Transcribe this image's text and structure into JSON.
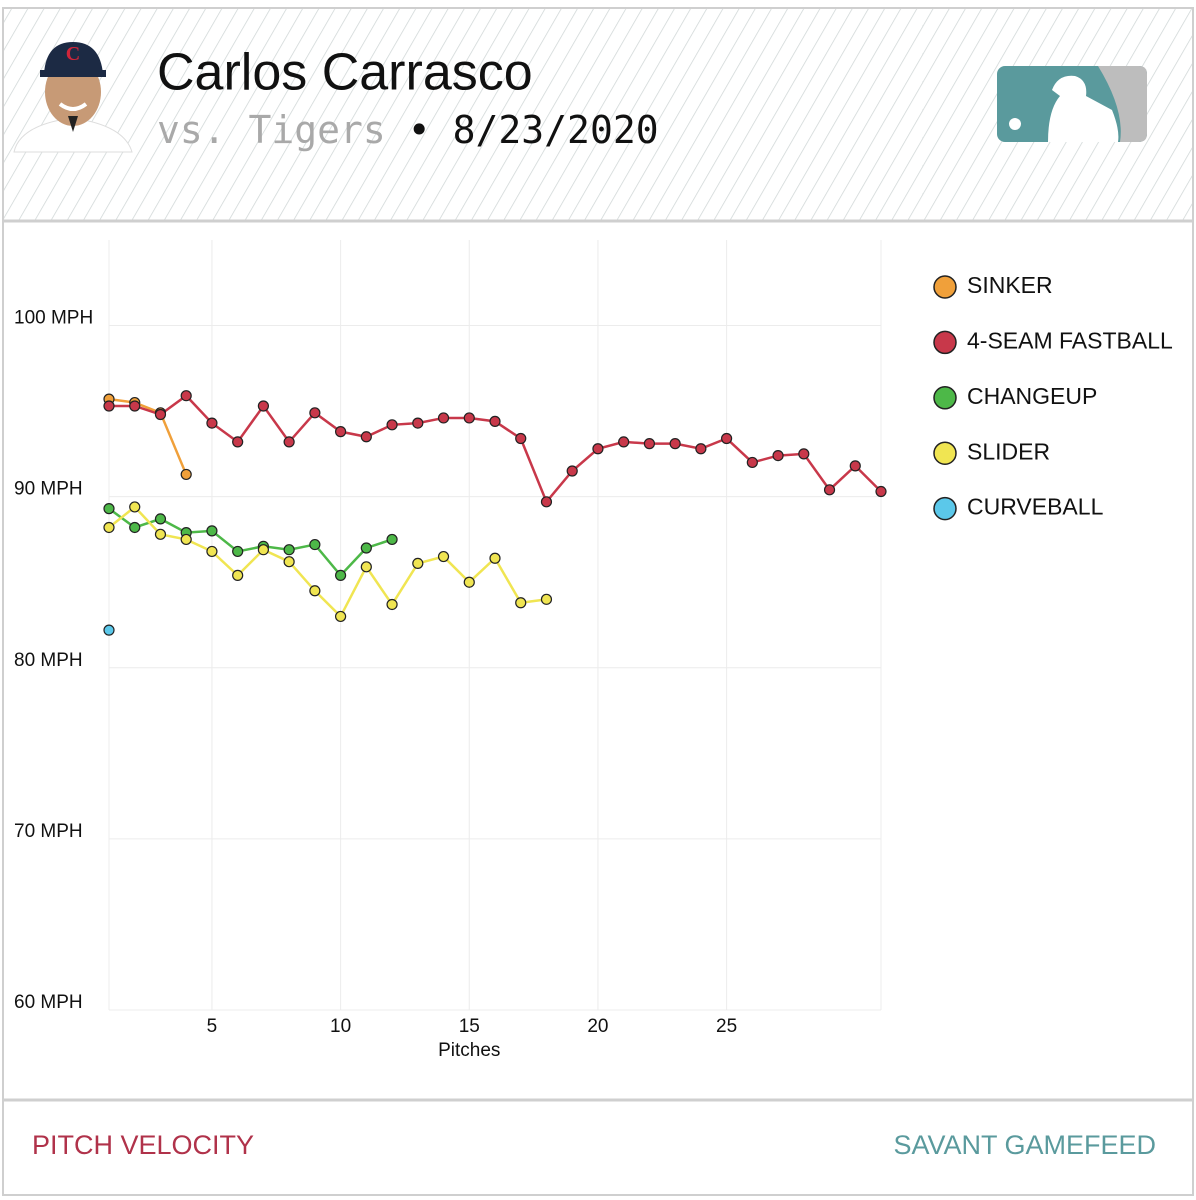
{
  "header": {
    "title": "Carlos Carrasco",
    "opponent": "vs. Tigers",
    "separator": "•",
    "date": "8/23/2020"
  },
  "footer": {
    "left": "PITCH VELOCITY",
    "right": "SAVANT GAMEFEED"
  },
  "chart_data": {
    "type": "line",
    "x_label": "Pitches",
    "x": [
      1,
      2,
      3,
      4,
      5,
      6,
      7,
      8,
      9,
      10,
      11,
      12,
      13,
      14,
      15,
      16,
      17,
      18,
      19,
      20,
      21,
      22,
      23,
      24,
      25,
      26,
      27,
      28,
      29,
      30,
      31
    ],
    "xlim": [
      1,
      31
    ],
    "xticks": [
      5,
      10,
      15,
      20,
      25
    ],
    "ylim": [
      60,
      105
    ],
    "yticks": [
      {
        "value": 60,
        "label": "60 MPH"
      },
      {
        "value": 70,
        "label": "70 MPH"
      },
      {
        "value": 80,
        "label": "80 MPH"
      },
      {
        "value": 90,
        "label": "90 MPH"
      },
      {
        "value": 100,
        "label": "100 MPH"
      }
    ],
    "grid": true,
    "legend": "right",
    "series": [
      {
        "name": "SINKER",
        "color": "#f0a03a",
        "values": [
          95.7,
          95.5,
          94.9,
          91.3,
          null,
          null,
          null,
          null,
          null,
          null,
          null,
          null,
          null,
          null,
          null,
          null,
          null,
          null,
          null,
          null,
          null,
          null,
          null,
          null,
          null,
          null,
          null,
          null,
          null,
          null,
          null
        ]
      },
      {
        "name": "4-SEAM FASTBALL",
        "color": "#c8384a",
        "values": [
          95.3,
          95.3,
          94.8,
          95.9,
          94.3,
          93.2,
          95.3,
          93.2,
          94.9,
          93.8,
          93.5,
          94.2,
          94.3,
          94.6,
          94.6,
          94.4,
          93.4,
          89.7,
          91.5,
          92.8,
          93.2,
          93.1,
          93.1,
          92.8,
          93.4,
          92.0,
          92.4,
          92.5,
          90.4,
          91.8,
          90.3
        ]
      },
      {
        "name": "CHANGEUP",
        "color": "#4db848",
        "values": [
          89.3,
          88.2,
          88.7,
          87.9,
          88.0,
          86.8,
          87.1,
          86.9,
          87.2,
          85.4,
          87.0,
          87.5,
          null,
          null,
          null,
          null,
          null,
          null,
          null,
          null,
          null,
          null,
          null,
          null,
          null,
          null,
          null,
          null,
          null,
          null,
          null
        ]
      },
      {
        "name": "SLIDER",
        "color": "#f0e552",
        "values": [
          88.2,
          89.4,
          87.8,
          87.5,
          86.8,
          85.4,
          86.9,
          86.2,
          84.5,
          83.0,
          85.9,
          83.7,
          86.1,
          86.5,
          85.0,
          86.4,
          83.8,
          84.0,
          null,
          null,
          null,
          null,
          null,
          null,
          null,
          null,
          null,
          null,
          null,
          null,
          null
        ]
      },
      {
        "name": "CURVEBALL",
        "color": "#5bc8ea",
        "values": [
          82.2,
          null,
          null,
          null,
          null,
          null,
          null,
          null,
          null,
          null,
          null,
          null,
          null,
          null,
          null,
          null,
          null,
          null,
          null,
          null,
          null,
          null,
          null,
          null,
          null,
          null,
          null,
          null,
          null,
          null,
          null
        ]
      }
    ]
  }
}
